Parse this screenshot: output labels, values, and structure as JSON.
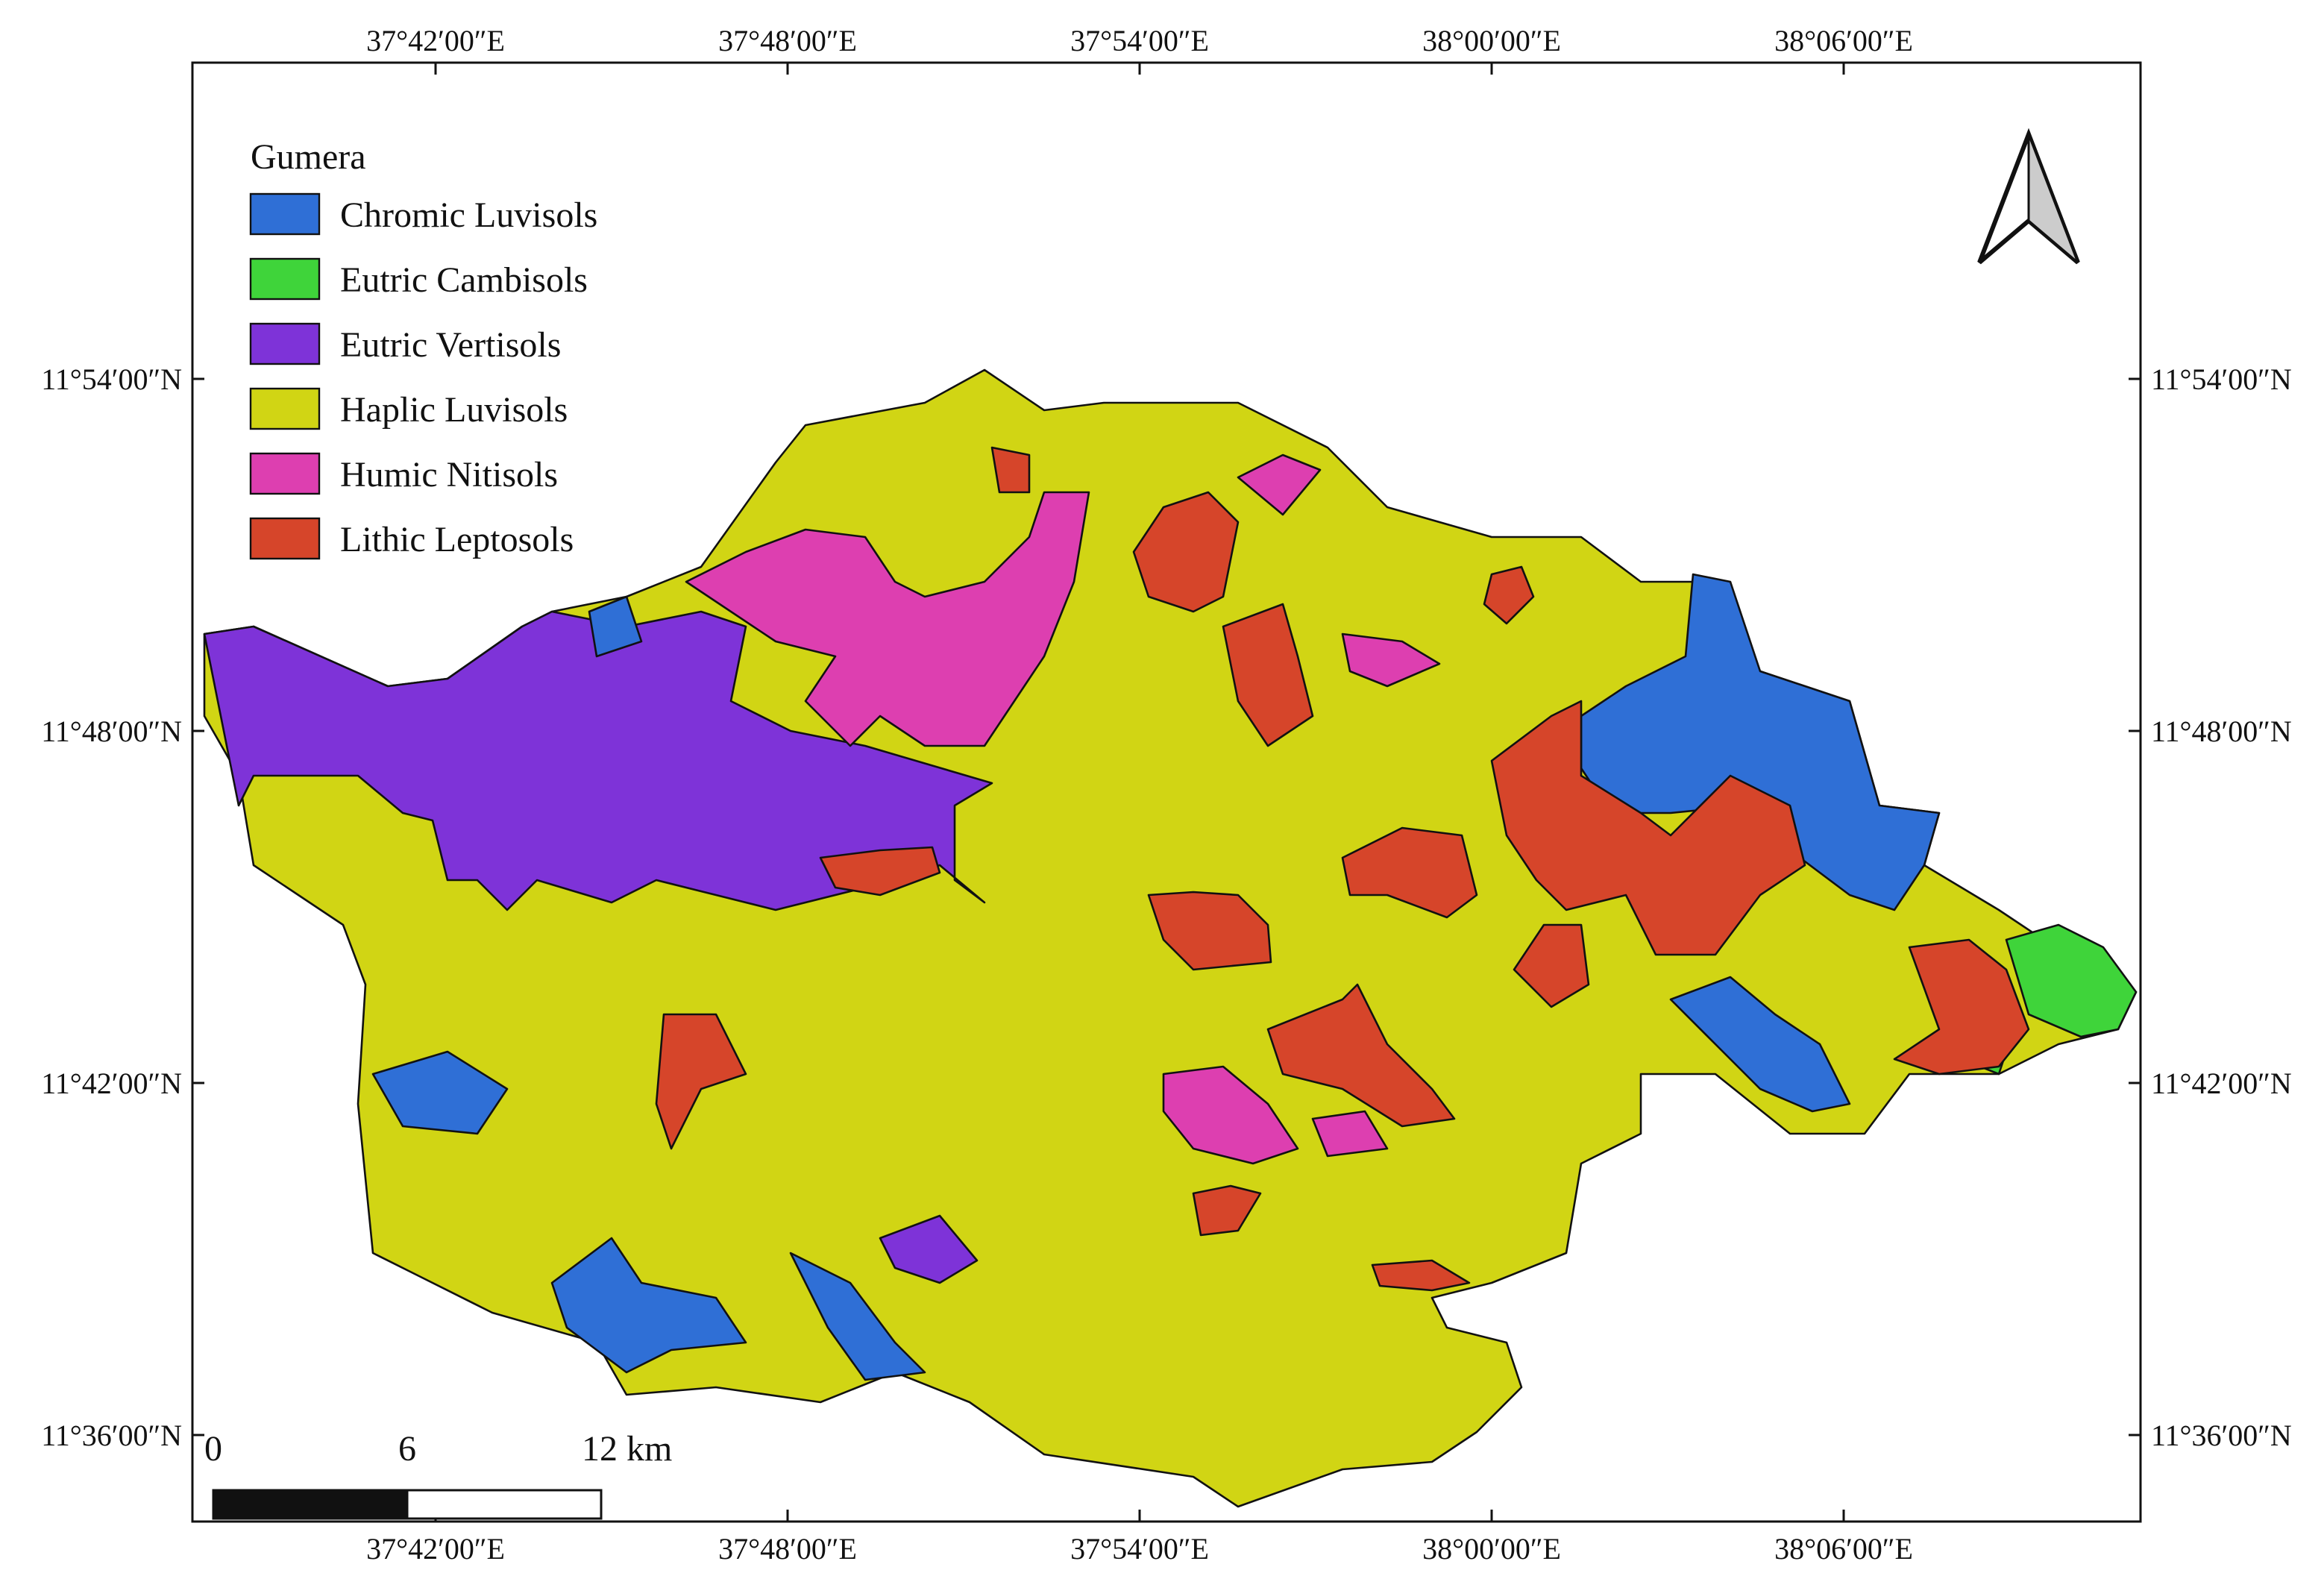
{
  "map": {
    "legend": {
      "title": "Gumera",
      "items": [
        {
          "label": "Chromic Luvisols",
          "color": "#2f6fd6"
        },
        {
          "label": "Eutric Cambisols",
          "color": "#3fd43a"
        },
        {
          "label": "Eutric Vertisols",
          "color": "#7e33d8"
        },
        {
          "label": "Haplic Luvisols",
          "color": "#d1d514"
        },
        {
          "label": "Humic Nitisols",
          "color": "#dd3fb0"
        },
        {
          "label": "Lithic Leptosols",
          "color": "#d6452a"
        }
      ]
    },
    "x_ticks": [
      "37°42′00″E",
      "37°48′00″E",
      "37°54′00″E",
      "38°00′00″E",
      "38°06′00″E"
    ],
    "y_ticks": [
      "11°54′00″N",
      "11°48′00″N",
      "11°42′00″N",
      "11°36′00″N"
    ],
    "scale_bar": {
      "labels": [
        "0",
        "6",
        "12 km"
      ]
    }
  }
}
